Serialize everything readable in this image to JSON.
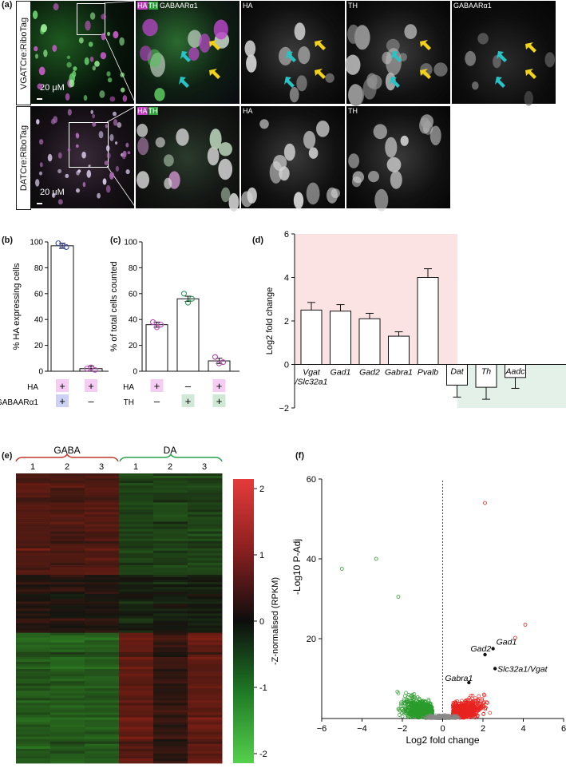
{
  "panel_a": {
    "label": "(a)",
    "row1_tag": "VGATCre:RiboTag",
    "row2_tag": "DATCre:RiboTag",
    "scale_bar": "20 μM",
    "row1_titles": {
      "merge_ha": "HA",
      "merge_th": "TH",
      "merge_gaba": "GABAARα1",
      "ha": "HA",
      "th": "TH",
      "gaba": "GABAARα1"
    },
    "row2_titles": {
      "merge_ha": "HA",
      "merge_th": "TH",
      "ha": "HA",
      "th": "TH"
    },
    "colors": {
      "ha": "#d23cd2",
      "th": "#39c84a",
      "gaba": "#3a5dd6",
      "yellow_arrow": "#f2d21b",
      "cyan_arrow": "#27c3c6"
    }
  },
  "panel_b": {
    "label": "(b)",
    "chart_data": {
      "type": "bar",
      "ylabel": "% HA expressing cells",
      "ylim": [
        0,
        100
      ],
      "yticks": [
        0,
        20,
        40,
        60,
        80,
        100
      ],
      "values": [
        97,
        2
      ],
      "points": [
        [
          99,
          97,
          96
        ],
        [
          2,
          3,
          1
        ]
      ],
      "row_labels": [
        "HA",
        "GABAARα1"
      ],
      "rows": [
        [
          "+",
          "+"
        ],
        [
          "+",
          "–"
        ]
      ]
    }
  },
  "panel_c": {
    "label": "(c)",
    "chart_data": {
      "type": "bar",
      "ylabel": "% of total cells counted",
      "ylim": [
        0,
        100
      ],
      "yticks": [
        0,
        20,
        40,
        60,
        80,
        100
      ],
      "values": [
        36,
        56,
        8
      ],
      "points": [
        [
          38,
          34,
          36
        ],
        [
          60,
          53,
          56
        ],
        [
          11,
          6,
          7
        ]
      ],
      "row_labels": [
        "HA",
        "TH"
      ],
      "rows": [
        [
          "+",
          "–",
          "+"
        ],
        [
          "–",
          "+",
          "+"
        ]
      ]
    }
  },
  "panel_d": {
    "label": "(d)",
    "chart_data": {
      "type": "bar",
      "ylabel": "Log2 fold change",
      "ylim": [
        -2,
        6
      ],
      "yticks": [
        -2,
        0,
        2,
        4,
        6
      ],
      "categories": [
        "Vgat /Slc32a1",
        "Gad1",
        "Gad2",
        "Gabra1",
        "Pvalb",
        "Dat",
        "Th",
        "Aadc"
      ],
      "cat_lines": [
        [
          "Vgat",
          "/Slc32a1"
        ],
        [
          "Gad1"
        ],
        [
          "Gad2"
        ],
        [
          "Gabra1"
        ],
        [
          "Pvalb"
        ],
        [
          "Dat"
        ],
        [
          "Th"
        ],
        [
          "Aadc"
        ]
      ],
      "values": [
        2.5,
        2.45,
        2.1,
        1.3,
        4.0,
        -0.95,
        -1.05,
        -0.6
      ],
      "errors": [
        0.35,
        0.3,
        0.25,
        0.2,
        0.4,
        0.55,
        0.55,
        0.5
      ],
      "colors": {
        "up": "#fbe3e3",
        "down": "#e3f1e8"
      }
    }
  },
  "panel_e": {
    "label": "(e)",
    "group1": "GABA",
    "group2": "DA",
    "columns": [
      "1",
      "2",
      "3",
      "1",
      "2",
      "3"
    ],
    "colorbar_label": "-Z-normalised (RPKM)",
    "colorbar_ticks": [
      "2",
      "1",
      "0",
      "-1",
      "-2"
    ],
    "chart_data": {
      "type": "heatmap",
      "columns": [
        "1",
        "2",
        "3",
        "1",
        "2",
        "3"
      ],
      "scale_min": -2,
      "scale_max": 2
    }
  },
  "panel_f": {
    "label": "(f)",
    "chart_data": {
      "type": "scatter",
      "xlabel": "Log2 fold change",
      "ylabel": "-Log10 P-Adj",
      "xlim": [
        -6,
        6
      ],
      "ylim": [
        0,
        60
      ],
      "xticks": [
        -6,
        -4,
        -2,
        0,
        2,
        4,
        6
      ],
      "yticks": [
        20,
        40,
        60
      ],
      "annotations": [
        {
          "text": "Gad1",
          "x": 2.5,
          "y": 17.5
        },
        {
          "text": "Gad2",
          "x": 2.1,
          "y": 16
        },
        {
          "text": "Slc32a1/Vgat",
          "x": 2.6,
          "y": 12.5
        },
        {
          "text": "Gabra1",
          "x": 1.3,
          "y": 9
        }
      ],
      "colors": {
        "up": "#e8231f",
        "down": "#2a9c2c",
        "ns": "#888888"
      }
    }
  }
}
